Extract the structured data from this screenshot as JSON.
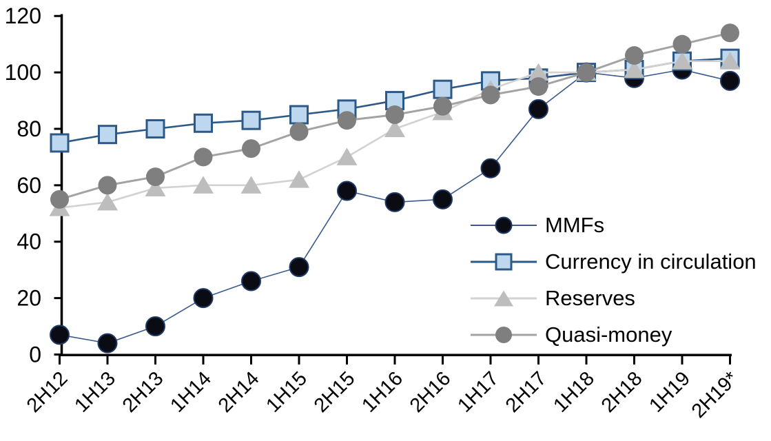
{
  "chart_data": {
    "type": "line",
    "title": "",
    "categories": [
      "2H12",
      "1H13",
      "2H13",
      "1H14",
      "2H14",
      "1H15",
      "2H15",
      "1H16",
      "2H16",
      "1H17",
      "2H17",
      "1H18",
      "2H18",
      "1H19",
      "2H19*"
    ],
    "series": [
      {
        "name": "MMFs",
        "marker": "circle",
        "marker_fill": "#0b0b14",
        "marker_stroke": "#1f3864",
        "line_color": "#3a5a8c",
        "line_width": 1.6,
        "values": [
          7,
          4,
          10,
          20,
          26,
          31,
          58,
          54,
          55,
          66,
          87,
          100,
          98,
          101,
          97
        ]
      },
      {
        "name": "Currency in circulation",
        "marker": "square",
        "marker_fill": "#bdd7ee",
        "marker_stroke": "#2d5986",
        "line_color": "#2d5986",
        "line_width": 2.6,
        "values": [
          75,
          78,
          80,
          82,
          83,
          85,
          87,
          90,
          94,
          97,
          98,
          100,
          101,
          104,
          105
        ]
      },
      {
        "name": "Reserves",
        "marker": "triangle",
        "marker_fill": "#bdbdbd",
        "marker_stroke": "none",
        "line_color": "#d2d2d2",
        "line_width": 2.6,
        "values": [
          52,
          54,
          59,
          60,
          60,
          62,
          70,
          80,
          86,
          94,
          100,
          100,
          101,
          104,
          104
        ]
      },
      {
        "name": "Quasi-money",
        "marker": "circle",
        "marker_fill": "#7f7f7f",
        "marker_stroke": "none",
        "line_color": "#a3a3a3",
        "line_width": 3,
        "values": [
          55,
          60,
          63,
          70,
          73,
          79,
          83,
          85,
          88,
          92,
          95,
          100,
          106,
          110,
          114
        ]
      }
    ],
    "y_axis": {
      "min": 0,
      "max": 120,
      "step": 20,
      "tick_labels": [
        "0",
        "20",
        "40",
        "60",
        "80",
        "100",
        "120"
      ]
    },
    "x_axis": {
      "tick_labels": [
        "2H12",
        "1H13",
        "2H13",
        "1H14",
        "2H14",
        "1H15",
        "2H15",
        "1H16",
        "2H16",
        "1H17",
        "2H17",
        "1H18",
        "2H18",
        "1H19",
        "2H19*"
      ],
      "label_rotation_deg": -45
    },
    "legend": {
      "position": "inside-right",
      "items": [
        "MMFs",
        "Currency in circulation",
        "Reserves",
        "Quasi-money"
      ]
    },
    "grid": false,
    "background": "#ffffff",
    "axis_color": "#000000"
  }
}
